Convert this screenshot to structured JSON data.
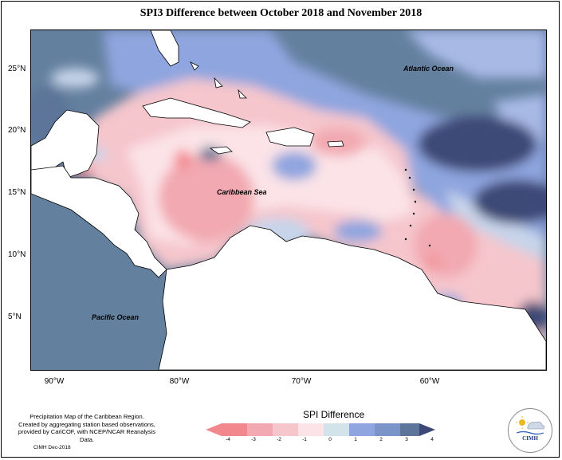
{
  "title": "SPI3 Difference between October 2018 and November 2018",
  "map": {
    "lat_labels": [
      "25°N",
      "20°N",
      "15°N",
      "10°N",
      "5°N"
    ],
    "lon_labels": [
      "90°W",
      "80°W",
      "70°W",
      "60°W"
    ],
    "ocean_labels": {
      "atlantic": "Atlantic Ocean",
      "caribbean": "Caribbean Sea",
      "pacific": "Pacific Ocean"
    }
  },
  "caption": {
    "line1": "Precipitation Map of the Caribbean Region.",
    "line2": "Created by aggregating station based observations,",
    "line3": "provided by CariCOF, with NCEP/NCAR Reanalysis Data.",
    "credit": "CIMH Dec-2018"
  },
  "legend": {
    "title": "SPI Difference",
    "ticks": [
      "-4",
      "-3",
      "-2",
      "-1",
      "0",
      "1",
      "2",
      "3",
      "4"
    ],
    "colors": [
      "#f3878e",
      "#f2a9b1",
      "#f5c6cc",
      "#fbe3e7",
      "#d3e3ea",
      "#8fa5df",
      "#7b95c9",
      "#5c7598",
      "#3e4876"
    ]
  },
  "logo": {
    "text": "CIMH"
  }
}
